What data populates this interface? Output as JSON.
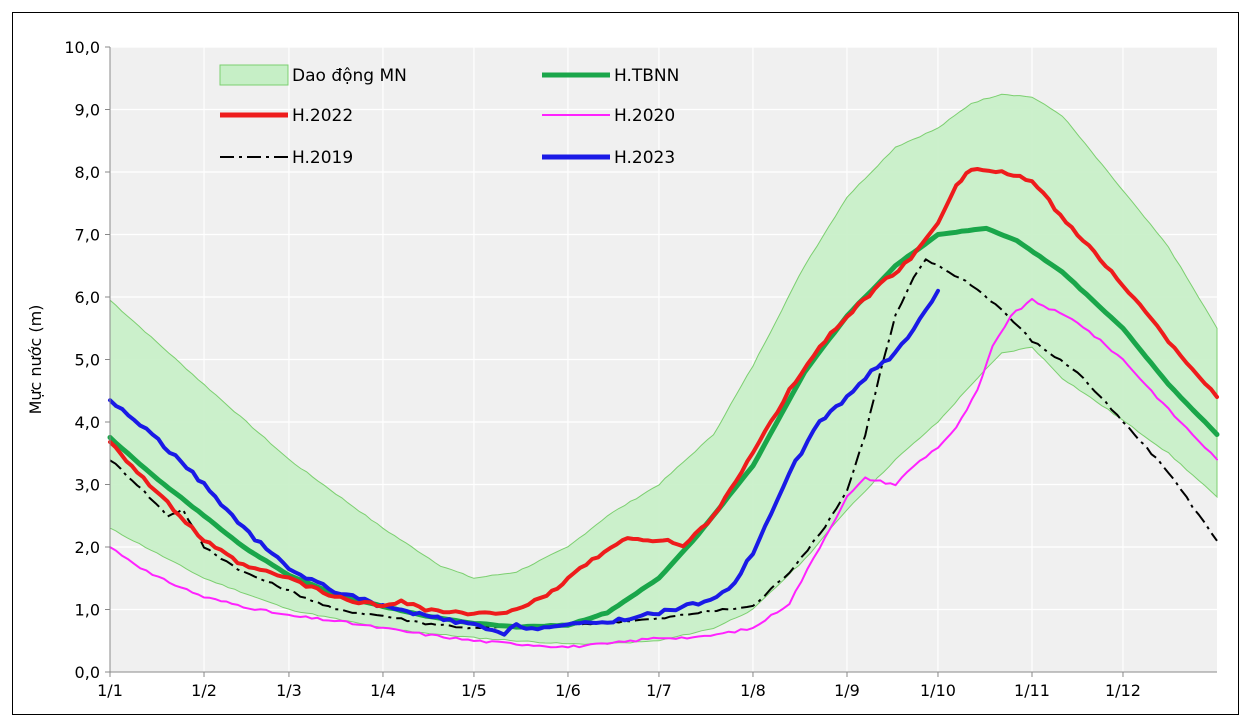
{
  "chart_data": {
    "type": "line",
    "title": "",
    "xlabel": "",
    "ylabel": "Mực nước (m)",
    "ylim": [
      0,
      10
    ],
    "xlim": [
      1,
      366
    ],
    "grid": true,
    "legend_placement": "top-left",
    "x_ticks": [
      {
        "label": "1/1",
        "day": 1
      },
      {
        "label": "1/2",
        "day": 32
      },
      {
        "label": "1/3",
        "day": 60
      },
      {
        "label": "1/4",
        "day": 91
      },
      {
        "label": "1/5",
        "day": 121
      },
      {
        "label": "1/6",
        "day": 152
      },
      {
        "label": "1/7",
        "day": 182
      },
      {
        "label": "1/8",
        "day": 213
      },
      {
        "label": "1/9",
        "day": 244
      },
      {
        "label": "1/10",
        "day": 274
      },
      {
        "label": "1/11",
        "day": 305
      },
      {
        "label": "1/12",
        "day": 335
      }
    ],
    "y_ticks": [
      "0,0",
      "1,0",
      "2,0",
      "3,0",
      "4,0",
      "5,0",
      "6,0",
      "7,0",
      "8,0",
      "9,0",
      "10,0"
    ],
    "colors": {
      "band_fill": "#c6efc6",
      "band_stroke": "#7ccf70",
      "tbnn": "#1aa64a",
      "y2022": "#ee1c1c",
      "y2020": "#ff22ff",
      "y2019": "#000000",
      "y2023": "#1a1ae6",
      "plot_bg": "#f0f0f0"
    },
    "band": {
      "name": "Dao động MN",
      "x": [
        1,
        32,
        60,
        91,
        110,
        121,
        135,
        152,
        165,
        182,
        200,
        213,
        230,
        244,
        260,
        274,
        285,
        295,
        305,
        315,
        330,
        350,
        366
      ],
      "upper": [
        5.95,
        4.6,
        3.4,
        2.3,
        1.7,
        1.5,
        1.6,
        2.0,
        2.5,
        3.0,
        3.8,
        4.9,
        6.5,
        7.6,
        8.4,
        8.7,
        9.1,
        9.25,
        9.2,
        8.9,
        8.0,
        6.8,
        5.5
      ],
      "lower": [
        2.3,
        1.5,
        1.0,
        0.7,
        0.6,
        0.55,
        0.5,
        0.45,
        0.45,
        0.5,
        0.7,
        1.0,
        1.8,
        2.6,
        3.4,
        4.0,
        4.6,
        5.1,
        5.2,
        4.7,
        4.2,
        3.5,
        2.8
      ]
    },
    "series": [
      {
        "name": "H.TBNN",
        "style": "solid-thick",
        "x": [
          1,
          15,
          32,
          45,
          60,
          75,
          91,
          105,
          121,
          135,
          152,
          165,
          182,
          195,
          213,
          230,
          244,
          260,
          274,
          290,
          300,
          315,
          335,
          350,
          366
        ],
        "y": [
          3.75,
          3.15,
          2.5,
          2.0,
          1.55,
          1.25,
          1.05,
          0.9,
          0.78,
          0.72,
          0.75,
          0.95,
          1.5,
          2.2,
          3.3,
          4.8,
          5.7,
          6.5,
          7.0,
          7.1,
          6.9,
          6.4,
          5.5,
          4.6,
          3.8
        ]
      },
      {
        "name": "H.2022",
        "style": "solid-thick",
        "x": [
          1,
          10,
          20,
          32,
          45,
          60,
          75,
          91,
          97,
          105,
          121,
          130,
          137,
          145,
          152,
          160,
          170,
          175,
          180,
          185,
          190,
          200,
          213,
          225,
          235,
          244,
          255,
          265,
          274,
          280,
          285,
          295,
          305,
          320,
          335,
          350,
          366
        ],
        "y": [
          3.7,
          3.2,
          2.7,
          2.1,
          1.7,
          1.5,
          1.2,
          1.05,
          1.15,
          1.0,
          0.92,
          0.95,
          1.05,
          1.2,
          1.5,
          1.8,
          2.1,
          2.15,
          2.1,
          2.1,
          2.0,
          2.5,
          3.5,
          4.5,
          5.2,
          5.7,
          6.2,
          6.6,
          7.2,
          7.8,
          8.05,
          8.0,
          7.85,
          7.0,
          6.2,
          5.3,
          4.4
        ]
      },
      {
        "name": "H.2020",
        "style": "solid-thin",
        "x": [
          1,
          15,
          32,
          45,
          60,
          75,
          91,
          105,
          121,
          135,
          152,
          165,
          182,
          195,
          213,
          225,
          235,
          244,
          250,
          255,
          260,
          266,
          274,
          280,
          287,
          292,
          298,
          305,
          320,
          335,
          350,
          366
        ],
        "y": [
          2.0,
          1.55,
          1.2,
          1.05,
          0.9,
          0.82,
          0.7,
          0.6,
          0.5,
          0.45,
          0.4,
          0.45,
          0.55,
          0.55,
          0.7,
          1.1,
          2.0,
          2.8,
          3.1,
          3.05,
          3.0,
          3.3,
          3.6,
          3.9,
          4.5,
          5.2,
          5.7,
          5.95,
          5.6,
          5.0,
          4.2,
          3.4
        ]
      },
      {
        "name": "H.2019",
        "style": "dash-dot",
        "x": [
          1,
          10,
          20,
          25,
          32,
          45,
          60,
          75,
          91,
          105,
          121,
          135,
          152,
          165,
          182,
          195,
          213,
          225,
          235,
          244,
          250,
          255,
          260,
          266,
          270,
          274,
          285,
          295,
          305,
          320,
          335,
          350,
          366
        ],
        "y": [
          3.4,
          3.0,
          2.5,
          2.6,
          2.0,
          1.6,
          1.3,
          1.0,
          0.9,
          0.78,
          0.7,
          0.72,
          0.75,
          0.8,
          0.85,
          0.95,
          1.05,
          1.6,
          2.2,
          2.9,
          3.8,
          4.8,
          5.7,
          6.3,
          6.6,
          6.5,
          6.2,
          5.8,
          5.3,
          4.8,
          4.0,
          3.2,
          2.1
        ]
      },
      {
        "name": "H.2023",
        "style": "solid-thick",
        "x": [
          1,
          15,
          32,
          45,
          60,
          75,
          91,
          105,
          121,
          131,
          135,
          140,
          152,
          165,
          182,
          195,
          205,
          213,
          225,
          235,
          244,
          252,
          260,
          266,
          274
        ],
        "y": [
          4.35,
          3.8,
          3.0,
          2.3,
          1.65,
          1.3,
          1.05,
          0.9,
          0.75,
          0.6,
          0.75,
          0.7,
          0.75,
          0.8,
          0.95,
          1.1,
          1.3,
          1.9,
          3.2,
          4.0,
          4.4,
          4.8,
          5.1,
          5.5,
          6.1
        ]
      }
    ],
    "legend": [
      {
        "label": "Dao động MN",
        "key": "band"
      },
      {
        "label": "H.TBNN",
        "key": "tbnn"
      },
      {
        "label": "H.2022",
        "key": "y2022"
      },
      {
        "label": "H.2020",
        "key": "y2020"
      },
      {
        "label": "H.2019",
        "key": "y2019"
      },
      {
        "label": "H.2023",
        "key": "y2023"
      }
    ]
  }
}
